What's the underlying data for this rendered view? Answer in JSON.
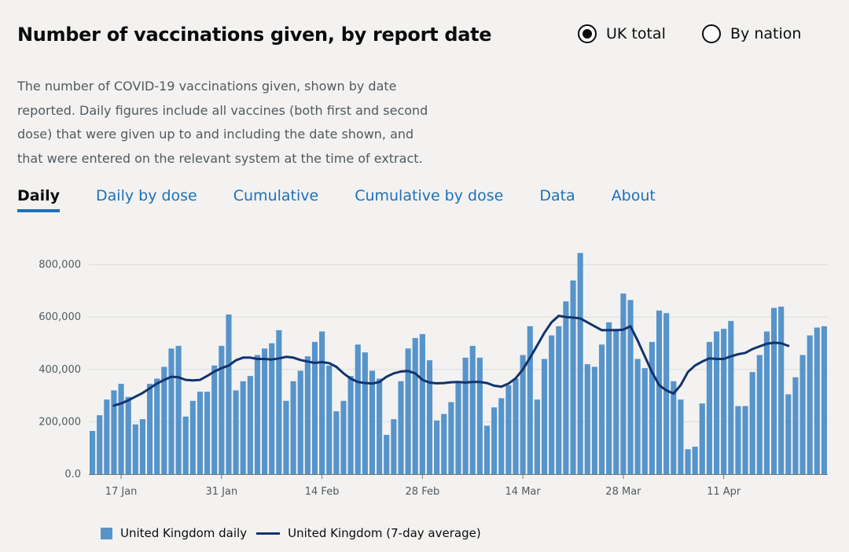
{
  "page": {
    "title": "Number of vaccinations given, by report date",
    "description": "The number of COVID-19 vaccinations given, shown by date reported. Daily figures include all vaccines (both first and second dose) that were given up to and including the date shown, and that were entered on the relevant system at the time of extract."
  },
  "radios": [
    {
      "label": "UK total",
      "selected": true
    },
    {
      "label": "By nation",
      "selected": false
    }
  ],
  "tabs": [
    {
      "label": "Daily",
      "active": true
    },
    {
      "label": "Daily by dose",
      "active": false
    },
    {
      "label": "Cumulative",
      "active": false
    },
    {
      "label": "Cumulative by dose",
      "active": false
    },
    {
      "label": "Data",
      "active": false
    },
    {
      "label": "About",
      "active": false
    }
  ],
  "legend": {
    "daily_label": "United Kingdom daily",
    "avg_label": "United Kingdom (7-day average)"
  },
  "colors": {
    "bar": "#5694ca",
    "line": "#12336f",
    "grid": "#dcdcdc"
  },
  "chart_data": {
    "type": "bar",
    "title": "Number of vaccinations given, by report date",
    "xlabel": "",
    "ylabel": "",
    "ylim": [
      0,
      850000
    ],
    "y_ticks": [
      0,
      200000,
      400000,
      600000,
      800000
    ],
    "y_tick_labels": [
      "0.0",
      "200,000",
      "400,000",
      "600,000",
      "800,000"
    ],
    "x_tick_labels": [
      {
        "label": "17 Jan",
        "index": 4
      },
      {
        "label": "31 Jan",
        "index": 18
      },
      {
        "label": "14 Feb",
        "index": 32
      },
      {
        "label": "28 Feb",
        "index": 46
      },
      {
        "label": "14 Mar",
        "index": 60
      },
      {
        "label": "28 Mar",
        "index": 74
      },
      {
        "label": "11 Apr",
        "index": 88
      }
    ],
    "series": [
      {
        "name": "United Kingdom daily",
        "type": "bar",
        "values": [
          165000,
          225000,
          285000,
          320000,
          345000,
          295000,
          190000,
          210000,
          345000,
          365000,
          410000,
          480000,
          490000,
          220000,
          280000,
          315000,
          315000,
          415000,
          490000,
          610000,
          320000,
          355000,
          375000,
          455000,
          480000,
          500000,
          550000,
          280000,
          355000,
          395000,
          450000,
          505000,
          545000,
          415000,
          240000,
          280000,
          375000,
          495000,
          465000,
          395000,
          365000,
          150000,
          210000,
          355000,
          480000,
          520000,
          535000,
          435000,
          205000,
          230000,
          275000,
          355000,
          445000,
          490000,
          445000,
          185000,
          255000,
          290000,
          340000,
          365000,
          455000,
          565000,
          285000,
          440000,
          530000,
          565000,
          660000,
          740000,
          845000,
          420000,
          410000,
          495000,
          580000,
          555000,
          690000,
          665000,
          440000,
          405000,
          505000,
          625000,
          615000,
          355000,
          285000,
          95000,
          105000,
          270000,
          505000,
          545000,
          555000,
          585000,
          260000,
          260000,
          390000,
          455000,
          545000,
          635000,
          640000,
          305000,
          370000,
          455000,
          530000,
          560000,
          565000
        ]
      },
      {
        "name": "United Kingdom (7-day average)",
        "type": "line",
        "start_index": 3,
        "values": [
          262000,
          270000,
          282000,
          296000,
          310000,
          328000,
          346000,
          360000,
          372000,
          370000,
          360000,
          358000,
          360000,
          375000,
          392000,
          405000,
          415000,
          435000,
          445000,
          445000,
          440000,
          440000,
          438000,
          442000,
          448000,
          445000,
          436000,
          430000,
          425000,
          428000,
          424000,
          410000,
          385000,
          365000,
          352000,
          348000,
          346000,
          352000,
          372000,
          385000,
          392000,
          394000,
          385000,
          360000,
          350000,
          347000,
          348000,
          351000,
          352000,
          350000,
          352000,
          352000,
          348000,
          338000,
          334000,
          346000,
          366000,
          400000,
          445000,
          492000,
          540000,
          580000,
          605000,
          600000,
          598000,
          595000,
          580000,
          565000,
          550000,
          550000,
          550000,
          552000,
          565000,
          510000,
          450000,
          390000,
          340000,
          320000,
          308000,
          340000,
          390000,
          415000,
          430000,
          442000,
          440000,
          440000,
          450000,
          458000,
          463000,
          478000,
          488000,
          498000,
          502000,
          500000,
          490000
        ]
      }
    ]
  }
}
